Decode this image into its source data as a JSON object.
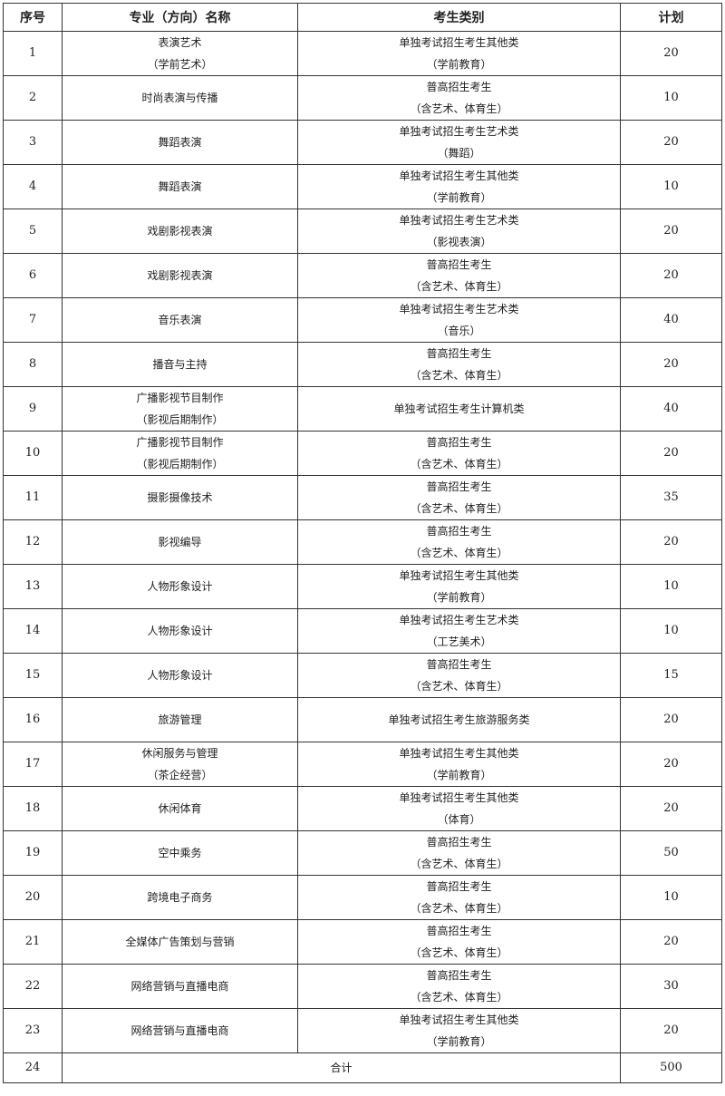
{
  "headers": [
    "序号",
    "专业（方向）名称",
    "考生类别",
    "计划"
  ],
  "rows": [
    {
      "no": "1",
      "major": [
        "表演艺术",
        "（学前艺术）"
      ],
      "category": [
        "单独考试招生考生其他类",
        "（学前教育）"
      ],
      "plan": "20"
    },
    {
      "no": "2",
      "major": [
        "时尚表演与传播"
      ],
      "category": [
        "普高招生考生",
        "（含艺术、体育生）"
      ],
      "plan": "10"
    },
    {
      "no": "3",
      "major": [
        "舞蹈表演"
      ],
      "category": [
        "单独考试招生考生艺术类",
        "（舞蹈）"
      ],
      "plan": "20"
    },
    {
      "no": "4",
      "major": [
        "舞蹈表演"
      ],
      "category": [
        "单独考试招生考生其他类",
        "（学前教育）"
      ],
      "plan": "10"
    },
    {
      "no": "5",
      "major": [
        "戏剧影视表演"
      ],
      "category": [
        "单独考试招生考生艺术类",
        "（影视表演）"
      ],
      "plan": "20"
    },
    {
      "no": "6",
      "major": [
        "戏剧影视表演"
      ],
      "category": [
        "普高招生考生",
        "（含艺术、体育生）"
      ],
      "plan": "20"
    },
    {
      "no": "7",
      "major": [
        "音乐表演"
      ],
      "category": [
        "单独考试招生考生艺术类",
        "（音乐）"
      ],
      "plan": "40"
    },
    {
      "no": "8",
      "major": [
        "播音与主持"
      ],
      "category": [
        "普高招生考生",
        "（含艺术、体育生）"
      ],
      "plan": "20"
    },
    {
      "no": "9",
      "major": [
        "广播影视节目制作",
        "（影视后期制作）"
      ],
      "category": [
        "单独考试招生考生计算机类"
      ],
      "plan": "40"
    },
    {
      "no": "10",
      "major": [
        "广播影视节目制作",
        "（影视后期制作）"
      ],
      "category": [
        "普高招生考生",
        "（含艺术、体育生）"
      ],
      "plan": "20"
    },
    {
      "no": "11",
      "major": [
        "摄影摄像技术"
      ],
      "category": [
        "普高招生考生",
        "（含艺术、体育生）"
      ],
      "plan": "35"
    },
    {
      "no": "12",
      "major": [
        "影视编导"
      ],
      "category": [
        "普高招生考生",
        "（含艺术、体育生）"
      ],
      "plan": "20"
    },
    {
      "no": "13",
      "major": [
        "人物形象设计"
      ],
      "category": [
        "单独考试招生考生其他类",
        "（学前教育）"
      ],
      "plan": "10"
    },
    {
      "no": "14",
      "major": [
        "人物形象设计"
      ],
      "category": [
        "单独考试招生考生艺术类",
        "（工艺美术）"
      ],
      "plan": "10"
    },
    {
      "no": "15",
      "major": [
        "人物形象设计"
      ],
      "category": [
        "普高招生考生",
        "（含艺术、体育生）"
      ],
      "plan": "15"
    },
    {
      "no": "16",
      "major": [
        "旅游管理"
      ],
      "category": [
        "单独考试招生考生旅游服务类"
      ],
      "plan": "20"
    },
    {
      "no": "17",
      "major": [
        "休闲服务与管理",
        "（茶企经营）"
      ],
      "category": [
        "单独考试招生考生其他类",
        "（学前教育）"
      ],
      "plan": "20"
    },
    {
      "no": "18",
      "major": [
        "休闲体育"
      ],
      "category": [
        "单独考试招生考生其他类",
        "（体育）"
      ],
      "plan": "20"
    },
    {
      "no": "19",
      "major": [
        "空中乘务"
      ],
      "category": [
        "普高招生考生",
        "（含艺术、体育生）"
      ],
      "plan": "50"
    },
    {
      "no": "20",
      "major": [
        "跨境电子商务"
      ],
      "category": [
        "普高招生考生",
        "（含艺术、体育生）"
      ],
      "plan": "10"
    },
    {
      "no": "21",
      "major": [
        "全媒体广告策划与营销"
      ],
      "category": [
        "普高招生考生",
        "（含艺术、体育生）"
      ],
      "plan": "20"
    },
    {
      "no": "22",
      "major": [
        "网络营销与直播电商"
      ],
      "category": [
        "普高招生考生",
        "（含艺术、体育生）"
      ],
      "plan": "30"
    },
    {
      "no": "23",
      "major": [
        "网络营销与直播电商"
      ],
      "category": [
        "单独考试招生考生其他类",
        "（学前教育）"
      ],
      "plan": "20"
    }
  ],
  "total": {
    "no": "24",
    "label": "合计",
    "plan": "500"
  }
}
